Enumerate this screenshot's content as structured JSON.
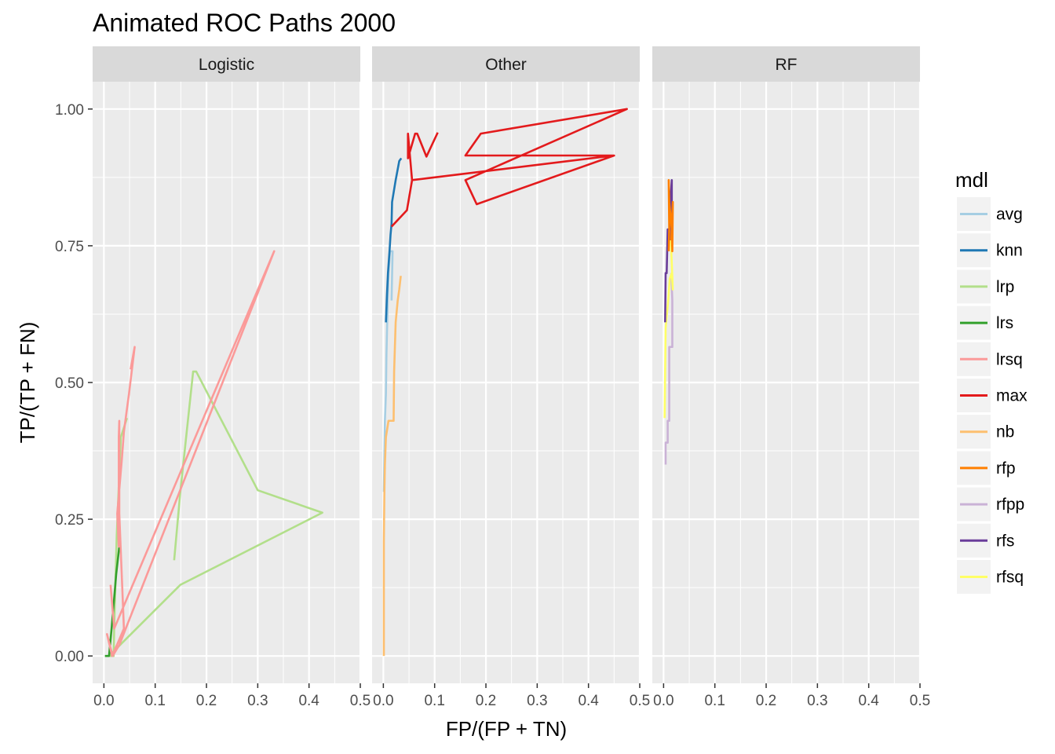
{
  "chart_data": {
    "type": "line",
    "title": "Animated ROC Paths 2000",
    "xlabel": "FP/(FP + TN)",
    "ylabel": "TP/(TP + FN)",
    "xlim": [
      -0.022,
      0.5
    ],
    "ylim": [
      -0.05,
      1.05
    ],
    "x_ticks": [
      0.0,
      0.1,
      0.2,
      0.3,
      0.4,
      0.5
    ],
    "x_tick_labels": [
      "0.0",
      "0.1",
      "0.2",
      "0.3",
      "0.4",
      "0.5"
    ],
    "y_ticks": [
      0.0,
      0.25,
      0.5,
      0.75,
      1.0
    ],
    "y_tick_labels": [
      "0.00",
      "0.25",
      "0.50",
      "0.75",
      "1.00"
    ],
    "grid": true,
    "legend": {
      "title": "mdl",
      "position": "right",
      "entries": [
        {
          "name": "avg",
          "color": "#A6CEE3"
        },
        {
          "name": "knn",
          "color": "#1F78B4"
        },
        {
          "name": "lrp",
          "color": "#B2DF8A"
        },
        {
          "name": "lrs",
          "color": "#33A02C"
        },
        {
          "name": "lrsq",
          "color": "#FB9A99"
        },
        {
          "name": "max",
          "color": "#E31A1C"
        },
        {
          "name": "nb",
          "color": "#FDBF6F"
        },
        {
          "name": "rfp",
          "color": "#FF7F00"
        },
        {
          "name": "rfpp",
          "color": "#CAB2D6"
        },
        {
          "name": "rfs",
          "color": "#6A3D9A"
        },
        {
          "name": "rfsq",
          "color": "#FFFF99"
        }
      ]
    },
    "panels": [
      {
        "label": "Logistic",
        "series": [
          {
            "name": "lrp",
            "color": "#B2DF8A",
            "points": [
              [
                0.137,
                0.175
              ],
              [
                0.149,
                0.3
              ],
              [
                0.174,
                0.52
              ],
              [
                0.18,
                0.52
              ],
              [
                0.3,
                0.303
              ],
              [
                0.426,
                0.262
              ],
              [
                0.149,
                0.13
              ],
              [
                0.01,
                0.0
              ],
              [
                0.019,
                0.0
              ],
              [
                0.02,
                0.05
              ],
              [
                0.025,
                0.22
              ],
              [
                0.033,
                0.4
              ],
              [
                0.045,
                0.435
              ]
            ]
          },
          {
            "name": "lrs",
            "color": "#33A02C",
            "points": [
              [
                0.002,
                0.0
              ],
              [
                0.01,
                0.0
              ],
              [
                0.015,
                0.05
              ],
              [
                0.024,
                0.15
              ],
              [
                0.03,
                0.2
              ]
            ]
          },
          {
            "name": "lrsq",
            "color": "#FB9A99",
            "points": [
              [
                0.052,
                0.524
              ],
              [
                0.06,
                0.565
              ],
              [
                0.049,
                0.48
              ],
              [
                0.039,
                0.41
              ],
              [
                0.035,
                0.36
              ],
              [
                0.026,
                0.26
              ],
              [
                0.029,
                0.2
              ],
              [
                0.029,
                0.4
              ],
              [
                0.03,
                0.43
              ],
              [
                0.03,
                0.26
              ],
              [
                0.039,
                0.05
              ],
              [
                0.03,
                0.03
              ],
              [
                0.016,
                0.0
              ],
              [
                0.006,
                0.04
              ],
              [
                0.017,
                0.0
              ],
              [
                0.03,
                0.02
              ],
              [
                0.332,
                0.74
              ],
              [
                0.02,
                0.05
              ],
              [
                0.013,
                0.13
              ]
            ]
          }
        ]
      },
      {
        "label": "Other",
        "series": [
          {
            "name": "avg",
            "color": "#A6CEE3",
            "points": [
              [
                0.001,
                0.3
              ],
              [
                0.003,
                0.43
              ],
              [
                0.005,
                0.48
              ],
              [
                0.006,
                0.55
              ],
              [
                0.008,
                0.63
              ],
              [
                0.01,
                0.7
              ],
              [
                0.013,
                0.74
              ],
              [
                0.018,
                0.74
              ],
              [
                0.016,
                0.65
              ]
            ]
          },
          {
            "name": "knn",
            "color": "#1F78B4",
            "points": [
              [
                0.005,
                0.61
              ],
              [
                0.007,
                0.66
              ],
              [
                0.009,
                0.7
              ],
              [
                0.012,
                0.74
              ],
              [
                0.014,
                0.77
              ],
              [
                0.016,
                0.79
              ],
              [
                0.017,
                0.83
              ],
              [
                0.024,
                0.87
              ],
              [
                0.031,
                0.905
              ],
              [
                0.035,
                0.91
              ]
            ]
          },
          {
            "name": "max",
            "color": "#E31A1C",
            "points": [
              [
                0.016,
                0.785
              ],
              [
                0.046,
                0.815
              ],
              [
                0.056,
                0.87
              ],
              [
                0.45,
                0.915
              ],
              [
                0.16,
                0.915
              ],
              [
                0.19,
                0.955
              ],
              [
                0.475,
                1.0
              ],
              [
                0.16,
                0.87
              ],
              [
                0.182,
                0.826
              ],
              [
                0.45,
                0.915
              ],
              [
                0.056,
                0.87
              ],
              [
                0.048,
                0.955
              ],
              [
                0.048,
                0.91
              ],
              [
                0.062,
                0.955
              ],
              [
                0.066,
                0.955
              ],
              [
                0.084,
                0.913
              ],
              [
                0.106,
                0.957
              ]
            ]
          },
          {
            "name": "nb",
            "color": "#FDBF6F",
            "points": [
              [
                0.001,
                0.0
              ],
              [
                0.001,
                0.21
              ],
              [
                0.002,
                0.3
              ],
              [
                0.003,
                0.35
              ],
              [
                0.005,
                0.4
              ],
              [
                0.01,
                0.43
              ],
              [
                0.02,
                0.43
              ],
              [
                0.021,
                0.52
              ],
              [
                0.024,
                0.61
              ],
              [
                0.028,
                0.65
              ],
              [
                0.031,
                0.67
              ],
              [
                0.034,
                0.695
              ]
            ]
          }
        ]
      },
      {
        "label": "RF",
        "series": [
          {
            "name": "rfpp",
            "color": "#CAB2D6",
            "points": [
              [
                0.004,
                0.35
              ],
              [
                0.004,
                0.39
              ],
              [
                0.008,
                0.39
              ],
              [
                0.008,
                0.43
              ],
              [
                0.011,
                0.43
              ],
              [
                0.011,
                0.565
              ],
              [
                0.017,
                0.565
              ],
              [
                0.017,
                0.65
              ],
              [
                0.015,
                0.7
              ]
            ]
          },
          {
            "name": "rfsq",
            "color": "#FFFF99",
            "points": [
              [
                0.002,
                0.435
              ],
              [
                0.003,
                0.52
              ],
              [
                0.004,
                0.6
              ],
              [
                0.009,
                0.65
              ],
              [
                0.012,
                0.69
              ],
              [
                0.016,
                0.7
              ],
              [
                0.018,
                0.67
              ],
              [
                0.015,
                0.74
              ],
              [
                0.012,
                0.78
              ]
            ]
          },
          {
            "name": "rfs",
            "color": "#6A3D9A",
            "points": [
              [
                0.003,
                0.61
              ],
              [
                0.004,
                0.7
              ],
              [
                0.006,
                0.7
              ],
              [
                0.008,
                0.78
              ],
              [
                0.012,
                0.78
              ],
              [
                0.013,
                0.83
              ],
              [
                0.016,
                0.87
              ],
              [
                0.016,
                0.81
              ],
              [
                0.014,
                0.76
              ]
            ]
          },
          {
            "name": "rfp",
            "color": "#FF7F00",
            "points": [
              [
                0.01,
                0.74
              ],
              [
                0.011,
                0.78
              ],
              [
                0.01,
                0.87
              ],
              [
                0.011,
                0.83
              ],
              [
                0.016,
                0.78
              ],
              [
                0.017,
                0.74
              ],
              [
                0.018,
                0.83
              ],
              [
                0.015,
                0.76
              ]
            ]
          }
        ]
      }
    ]
  }
}
